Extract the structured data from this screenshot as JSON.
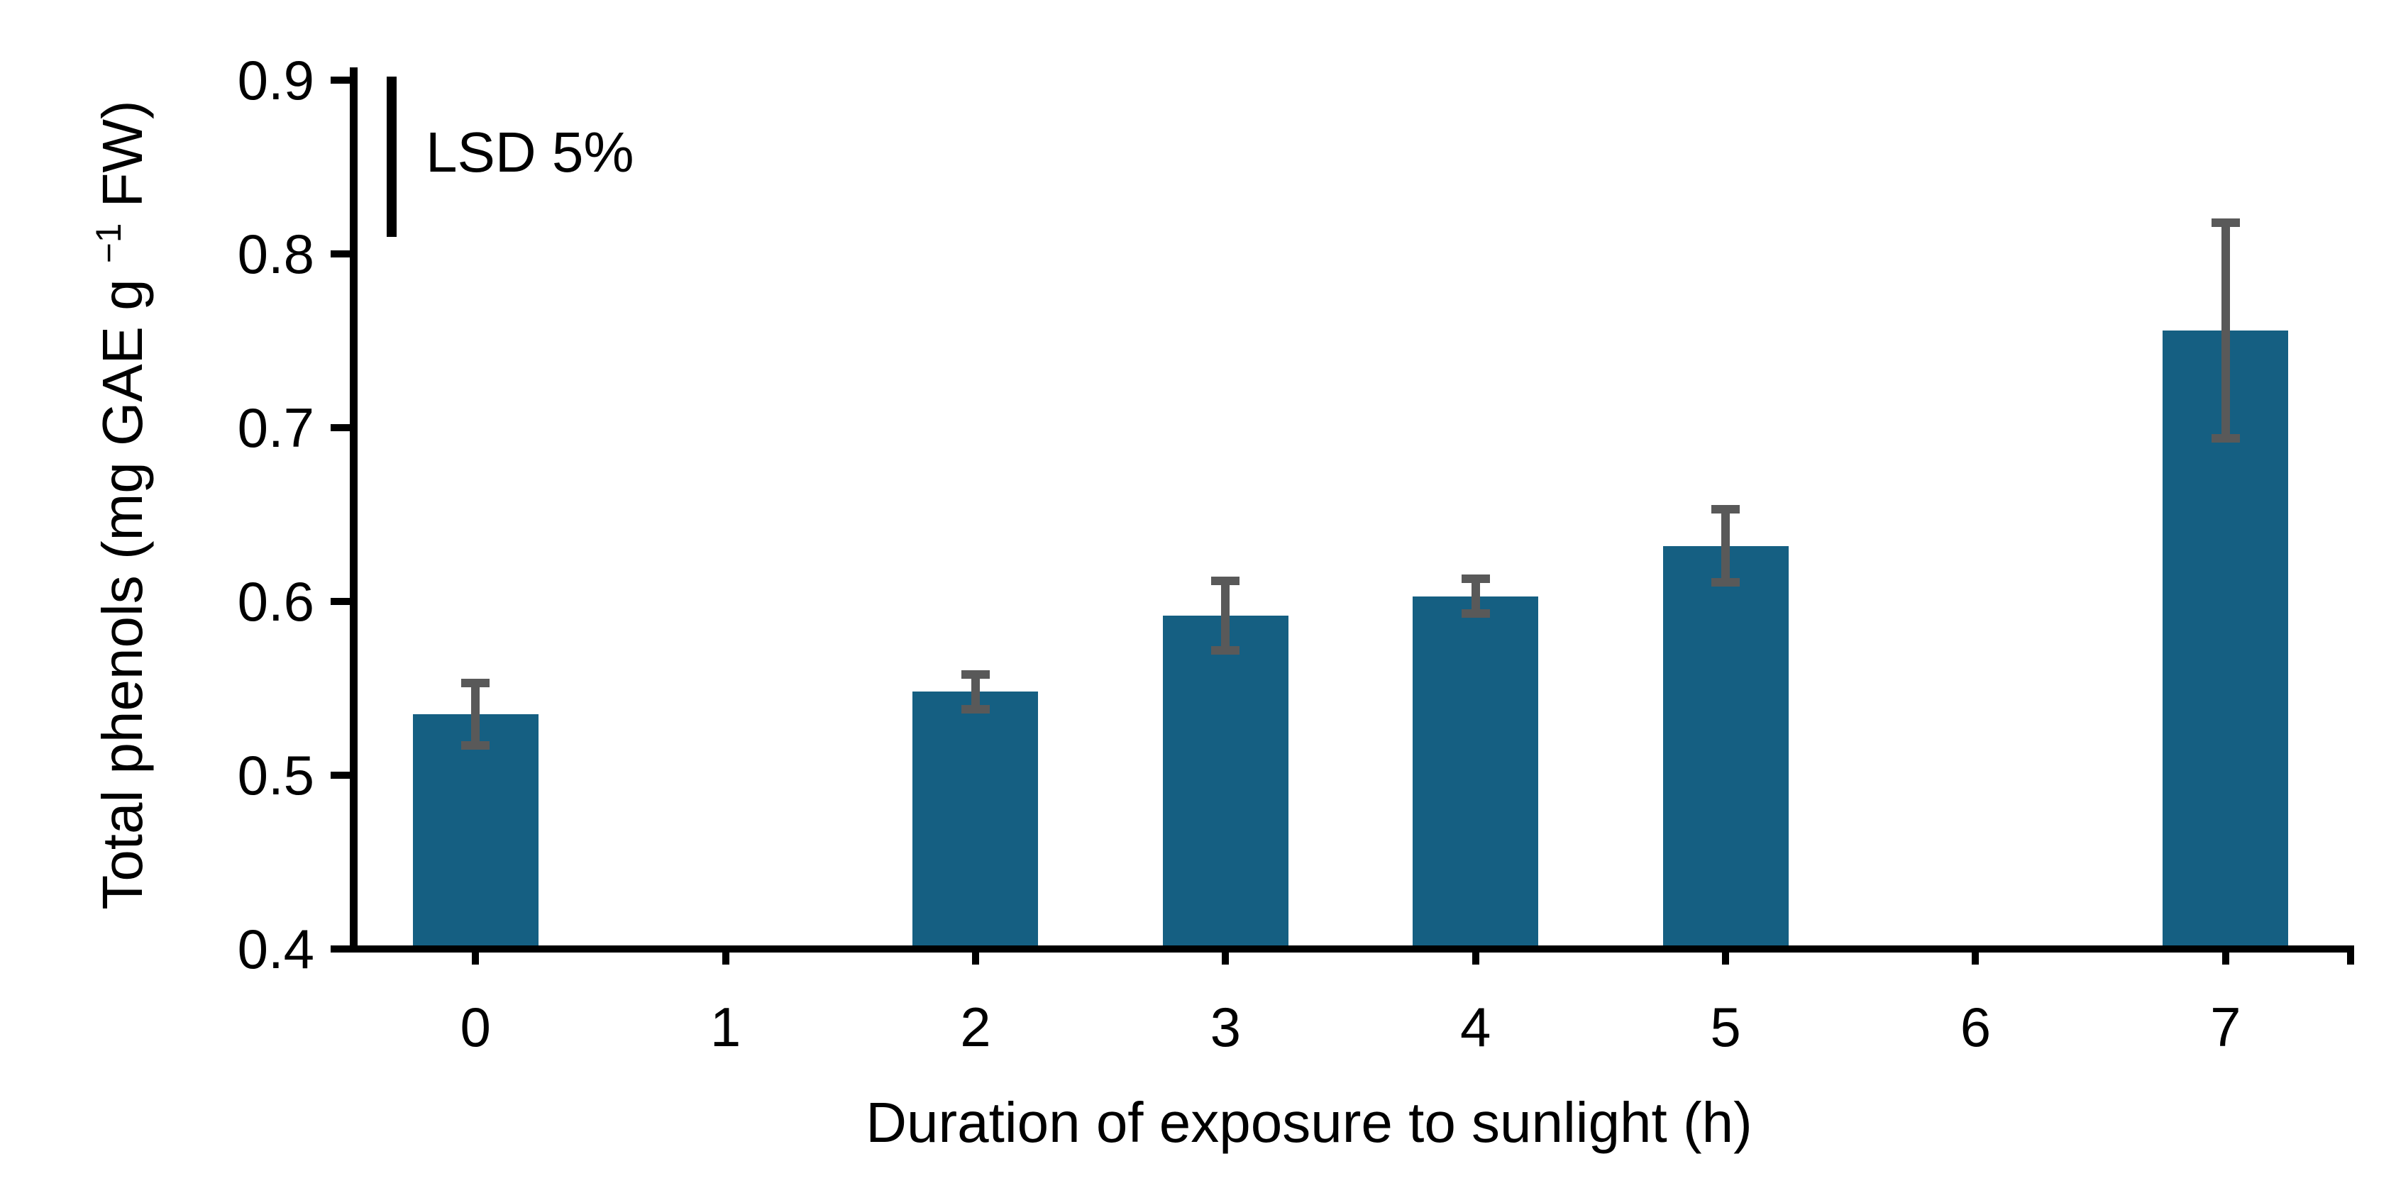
{
  "chart_data": {
    "type": "bar",
    "title": "",
    "xlabel": "Duration of exposure to sunlight (h)",
    "ylabel": "Total phenols (mg GAE g −1 FW)",
    "ylabel_prefix": "Total phenols (mg GAE g ",
    "ylabel_sup": "−1",
    "ylabel_suffix": " FW)",
    "categories": [
      "0",
      "1",
      "2",
      "3",
      "4",
      "5",
      "6",
      "7"
    ],
    "values": [
      0.535,
      null,
      0.548,
      0.592,
      0.603,
      0.632,
      null,
      0.756
    ],
    "errors": [
      0.018,
      null,
      0.01,
      0.02,
      0.01,
      0.021,
      null,
      0.062
    ],
    "yticks": [
      "0.4",
      "0.5",
      "0.6",
      "0.7",
      "0.8",
      "0.9"
    ],
    "ylim": [
      0.4,
      0.9
    ],
    "grid": false,
    "legend": "none",
    "annotation": {
      "label": "LSD 5%",
      "line_top_value": 0.9,
      "line_bottom_value": 0.81
    },
    "bar_color": "#155F82",
    "error_color": "#595959",
    "axis_color": "#000000"
  }
}
